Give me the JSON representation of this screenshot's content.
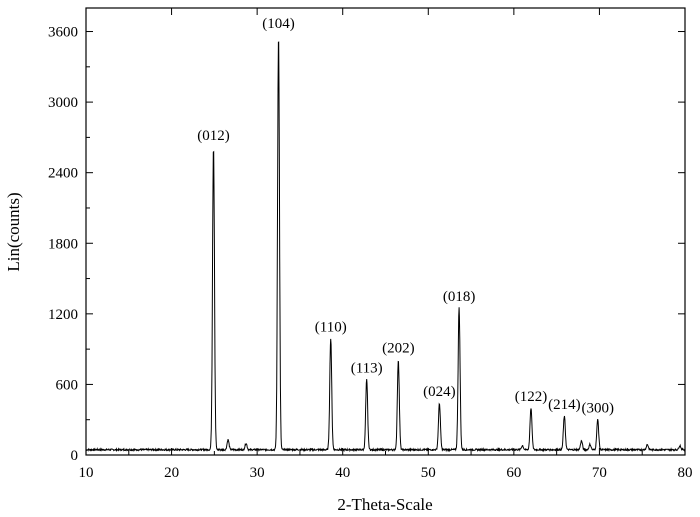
{
  "chart_data": {
    "type": "line",
    "title": "",
    "xlabel": "2-Theta-Scale",
    "ylabel": "Lin(counts)",
    "xlim": [
      10,
      80
    ],
    "ylim": [
      0,
      3800
    ],
    "xticks": [
      10,
      20,
      30,
      40,
      50,
      60,
      70,
      80
    ],
    "yticks": [
      0,
      600,
      1200,
      1800,
      2400,
      3000,
      3600
    ],
    "grid": false,
    "color": "#000000",
    "baseline": 45,
    "peaks": [
      {
        "x": 24.9,
        "y": 2620,
        "label": "(012)"
      },
      {
        "x": 26.6,
        "y": 130,
        "label": ""
      },
      {
        "x": 28.7,
        "y": 100,
        "label": ""
      },
      {
        "x": 32.5,
        "y": 3570,
        "label": "(104)"
      },
      {
        "x": 38.6,
        "y": 990,
        "label": "(110)"
      },
      {
        "x": 42.8,
        "y": 640,
        "label": "(113)"
      },
      {
        "x": 46.5,
        "y": 810,
        "label": "(202)"
      },
      {
        "x": 51.3,
        "y": 440,
        "label": "(024)"
      },
      {
        "x": 53.6,
        "y": 1250,
        "label": "(018)"
      },
      {
        "x": 61.0,
        "y": 80,
        "label": ""
      },
      {
        "x": 62.0,
        "y": 400,
        "label": "(122)"
      },
      {
        "x": 65.9,
        "y": 330,
        "label": "(214)"
      },
      {
        "x": 67.9,
        "y": 120,
        "label": ""
      },
      {
        "x": 68.9,
        "y": 90,
        "label": ""
      },
      {
        "x": 69.8,
        "y": 300,
        "label": "(300)"
      },
      {
        "x": 75.6,
        "y": 90,
        "label": ""
      },
      {
        "x": 79.4,
        "y": 80,
        "label": ""
      }
    ]
  }
}
